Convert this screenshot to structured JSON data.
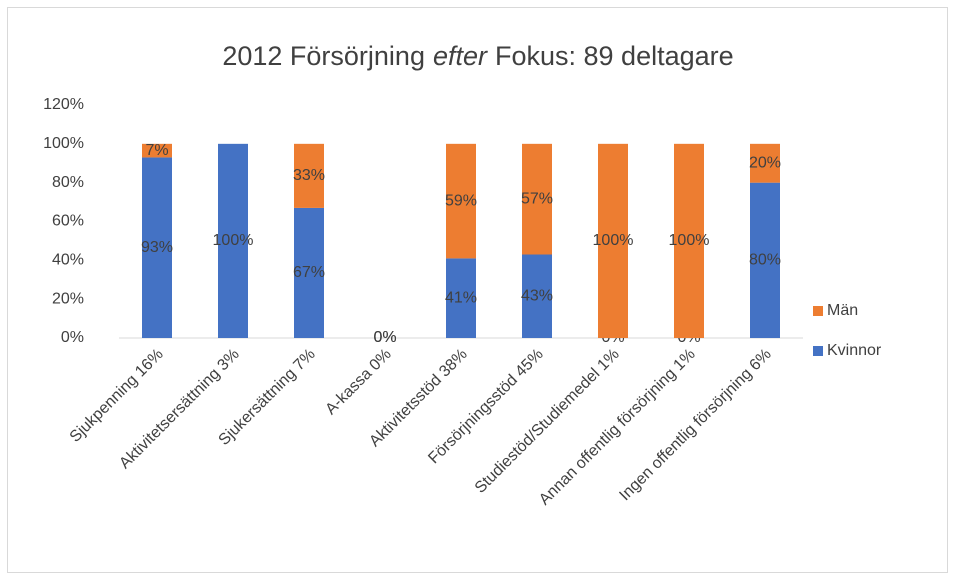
{
  "chart_data": {
    "type": "stacked_bar",
    "title": [
      "2012 Försörjning",
      "efter",
      "Fokus: 89 deltagare"
    ],
    "categories": [
      "Sjukpenning 16%",
      "Aktivitetsersättning 3%",
      "Sjukersättning 7%",
      "A-kassa 0%",
      "Aktivitetsstöd 38%",
      "Försörjningsstöd 45%",
      "Studiestöd/Studiemedel 1%",
      "Annan offentlig försörjning 1%",
      "Ingen offentlig försörjning 6%"
    ],
    "series": [
      {
        "name": "Kvinnor",
        "color": "#4472c4",
        "values": [
          93,
          100,
          67,
          0,
          41,
          43,
          0,
          0,
          80
        ],
        "value_labels": [
          "93%",
          "100%",
          "67%",
          "0%",
          "41%",
          "43%",
          "0%",
          "0%",
          "80%"
        ]
      },
      {
        "name": "Män",
        "color": "#ed7d31",
        "values": [
          7,
          0,
          33,
          0,
          59,
          57,
          100,
          100,
          20
        ],
        "value_labels": [
          "7%",
          null,
          "33%",
          "0%",
          "59%",
          "57%",
          "100%",
          "100%",
          "20%"
        ]
      }
    ],
    "ylim": [
      0,
      120
    ],
    "yticks": [
      {
        "value": 0,
        "label": "0%"
      },
      {
        "value": 20,
        "label": "20%"
      },
      {
        "value": 40,
        "label": "40%"
      },
      {
        "value": 60,
        "label": "60%"
      },
      {
        "value": 80,
        "label": "80%"
      },
      {
        "value": 100,
        "label": "100%"
      },
      {
        "value": 120,
        "label": "120%"
      }
    ],
    "grid": false,
    "legend": "right"
  }
}
